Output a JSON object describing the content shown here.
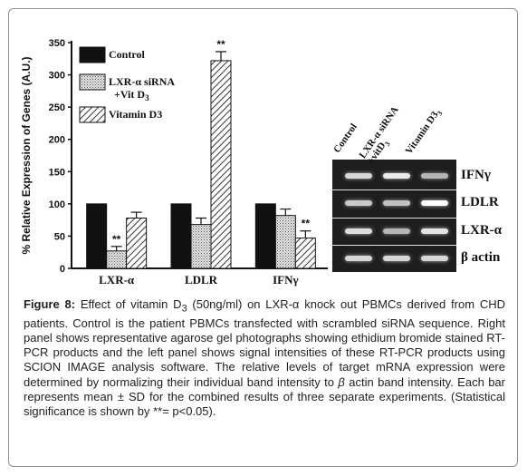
{
  "chart_data": {
    "type": "bar",
    "ylabel": "% Relative Expression of Genes (A.U.)",
    "xlabel": "",
    "ylim": [
      0,
      350
    ],
    "yticks": [
      0,
      50,
      100,
      150,
      200,
      250,
      300,
      350
    ],
    "categories": [
      "LXR-α",
      "LDLR",
      "IFNγ"
    ],
    "series": [
      {
        "name": "Control",
        "values": [
          100,
          100,
          100
        ],
        "errors": [
          0,
          0,
          0
        ],
        "pattern": "solid-black"
      },
      {
        "name": "LXR-α siRNA +Vit D3",
        "name_lines": [
          "LXR-α siRNA",
          "+Vit D",
          "3"
        ],
        "values": [
          27,
          68,
          82
        ],
        "errors": [
          7,
          10,
          10
        ],
        "pattern": "dotted-gray"
      },
      {
        "name": "Vitamin D3",
        "values": [
          78,
          322,
          47
        ],
        "errors": [
          9,
          14,
          11
        ],
        "pattern": "diagonal-hatch"
      }
    ],
    "significance": [
      {
        "category": "LXR-α",
        "series": "LXR-α siRNA +Vit D3",
        "label": "**"
      },
      {
        "category": "LDLR",
        "series": "Vitamin D3",
        "label": "**"
      },
      {
        "category": "IFNγ",
        "series": "Vitamin D3",
        "label": "**"
      }
    ],
    "legend_position": "top-left",
    "grid": false
  },
  "gel": {
    "lane_labels": [
      {
        "lines": [
          "Control"
        ]
      },
      {
        "lines": [
          "LXR-α siRNA",
          "+vitD",
          "3"
        ]
      },
      {
        "lines": [
          "Vitamin D",
          "3"
        ]
      }
    ],
    "rows": [
      {
        "label": "IFNγ",
        "intensities": [
          0.7,
          0.85,
          0.45
        ]
      },
      {
        "label": "LDLR",
        "intensities": [
          0.6,
          0.55,
          1.0
        ]
      },
      {
        "label": "LXR-α",
        "intensities": [
          0.75,
          0.45,
          0.8
        ]
      },
      {
        "label": "β actin",
        "intensities": [
          0.7,
          0.7,
          0.7
        ]
      }
    ]
  },
  "caption": {
    "figure_label": "Figure 8:",
    "text_before_sub": " Effect of vitamin D",
    "sub": "3",
    "text_after_sub": " (50ng/ml) on LXR-α knock out PBMCs derived from CHD patients. Control is the patient PBMCs transfected with scrambled siRNA sequence. Right panel shows representative agarose gel photographs showing ethidium bromide stained RT-PCR products and the left panel shows signal intensities of these RT-PCR products using SCION IMAGE analysis software. The relative levels of target mRNA expression were determined by normalizing their individual band intensity to ",
    "beta": "β",
    "text_after_beta": " actin band intensity. Each bar represents mean ± SD for the combined results of three separate experiments. (Statistical significance is shown by **= p<0.05)."
  }
}
